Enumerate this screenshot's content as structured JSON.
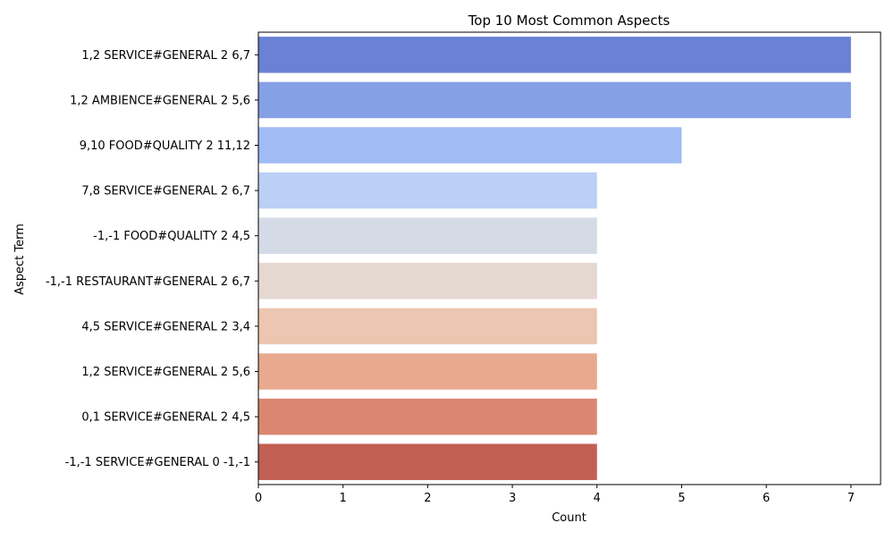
{
  "chart_data": {
    "type": "bar",
    "orientation": "horizontal",
    "title": "Top 10 Most Common Aspects",
    "xlabel": "Count",
    "ylabel": "Aspect Term",
    "xlim": [
      0,
      7.35
    ],
    "xticks": [
      0,
      1,
      2,
      3,
      4,
      5,
      6,
      7
    ],
    "grid": false,
    "legend": "none",
    "categories": [
      "1,2 SERVICE#GENERAL 2 6,7",
      "1,2 AMBIENCE#GENERAL 2 5,6",
      "9,10 FOOD#QUALITY 2 11,12",
      "7,8 SERVICE#GENERAL 2 6,7",
      "-1,-1 FOOD#QUALITY 2 4,5",
      "-1,-1 RESTAURANT#GENERAL 2 6,7",
      "4,5 SERVICE#GENERAL 2 3,4",
      "1,2 SERVICE#GENERAL 2 5,6",
      "0,1 SERVICE#GENERAL 2 4,5",
      "-1,-1 SERVICE#GENERAL 0 -1,-1"
    ],
    "values": [
      7,
      7,
      5,
      4,
      4,
      4,
      4,
      4,
      4,
      4
    ],
    "colors": [
      "#6a81d4",
      "#86a0e6",
      "#a1bbf5",
      "#bccff4",
      "#d4dbe7",
      "#e4d8d0",
      "#ecc6b1",
      "#e8a98f",
      "#db8671",
      "#c25f54"
    ]
  }
}
